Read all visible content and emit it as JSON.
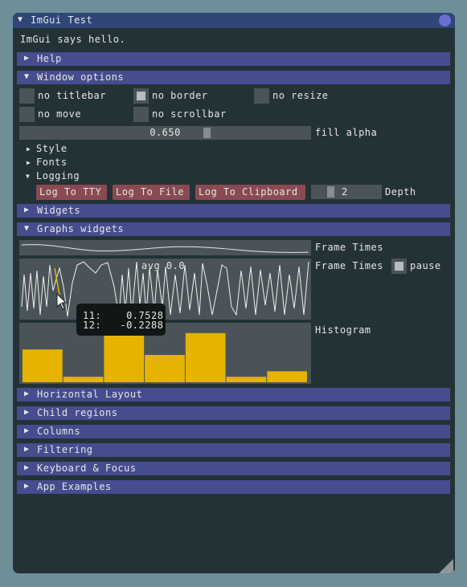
{
  "window": {
    "title": "ImGui Test"
  },
  "hello": "ImGui says hello.",
  "headers": {
    "help": "Help",
    "window_options": "Window options",
    "widgets": "Widgets",
    "graphs_widgets": "Graphs widgets",
    "bottom": [
      "Horizontal Layout",
      "Child regions",
      "Columns",
      "Filtering",
      "Keyboard & Focus",
      "App Examples"
    ]
  },
  "options": {
    "no_titlebar": {
      "label": "no titlebar",
      "checked": false
    },
    "no_border": {
      "label": "no border",
      "checked": true
    },
    "no_resize": {
      "label": "no resize",
      "checked": false
    },
    "no_move": {
      "label": "no move",
      "checked": false
    },
    "no_scrollbar": {
      "label": "no scrollbar",
      "checked": false
    },
    "fill_alpha_value": "0.650",
    "fill_alpha_label": "fill alpha"
  },
  "tree": {
    "style": "Style",
    "fonts": "Fonts",
    "logging": "Logging"
  },
  "logging": {
    "tty": "Log To TTY",
    "file": "Log To File",
    "clipboard": "Log To Clipboard",
    "depth_value": "2",
    "depth_label": "Depth"
  },
  "graphs": {
    "frame_times_label_1": "Frame Times",
    "frame_times_label_2": "Frame Times",
    "pause_label": "pause",
    "pause_checked": true,
    "overlay_text": "avg 0.0",
    "histogram_label": "Histogram",
    "tooltip_line1": "11:    0.7528",
    "tooltip_line2": "12:   -0.2288",
    "histogram_values": [
      0.6,
      0.1,
      1.0,
      0.5,
      0.9,
      0.1,
      0.2
    ]
  },
  "colors": {
    "header": "#454d8e",
    "histogram": "#e6b400",
    "title_active": "#2f4676"
  }
}
